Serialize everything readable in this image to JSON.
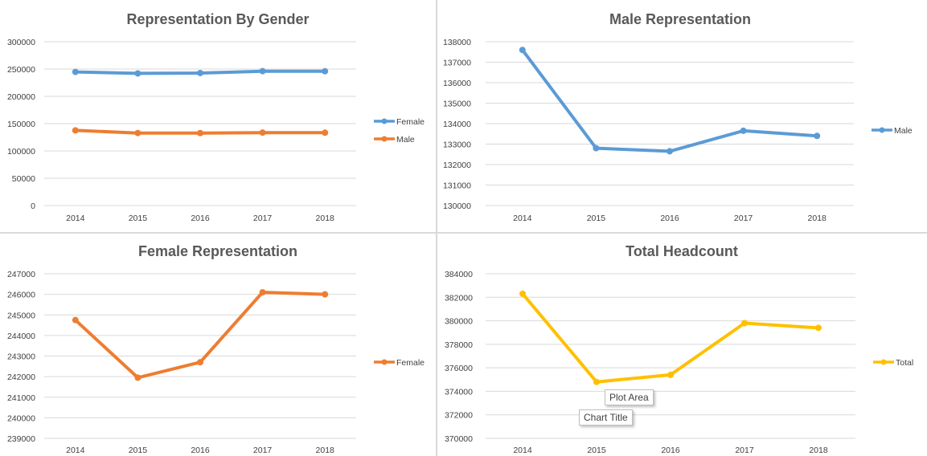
{
  "chart_data": [
    {
      "type": "line",
      "title": "Representation By Gender",
      "categories": [
        "2014",
        "2015",
        "2016",
        "2017",
        "2018"
      ],
      "series": [
        {
          "name": "Female",
          "values": [
            244700,
            242000,
            242700,
            246100,
            246000
          ],
          "color": "#5b9bd5"
        },
        {
          "name": "Male",
          "values": [
            137600,
            132800,
            132700,
            133600,
            133400
          ],
          "color": "#ed7d31"
        }
      ],
      "yticks": [
        "300000",
        "250000",
        "200000",
        "150000",
        "100000",
        "50000",
        "0"
      ],
      "ylim": [
        0,
        300000
      ],
      "legend_position": "right",
      "grid": true
    },
    {
      "type": "line",
      "title": "Male Representation",
      "categories": [
        "2014",
        "2015",
        "2016",
        "2017",
        "2018"
      ],
      "series": [
        {
          "name": "Male",
          "values": [
            137600,
            132800,
            132650,
            133650,
            133400
          ],
          "color": "#5b9bd5"
        }
      ],
      "yticks": [
        "138000",
        "137000",
        "136000",
        "135000",
        "134000",
        "133000",
        "132000",
        "131000",
        "130000"
      ],
      "ylim": [
        130000,
        138000
      ],
      "legend_position": "right",
      "grid": true
    },
    {
      "type": "line",
      "title": "Female Representation",
      "categories": [
        "2014",
        "2015",
        "2016",
        "2017",
        "2018"
      ],
      "series": [
        {
          "name": "Female",
          "values": [
            244750,
            241950,
            242700,
            246100,
            246000
          ],
          "color": "#ed7d31"
        }
      ],
      "yticks": [
        "247000",
        "246000",
        "245000",
        "244000",
        "243000",
        "242000",
        "241000",
        "240000",
        "239000"
      ],
      "ylim": [
        239000,
        247000
      ],
      "legend_position": "right",
      "grid": true
    },
    {
      "type": "line",
      "title": "Total Headcount",
      "categories": [
        "2014",
        "2015",
        "2016",
        "2017",
        "2018"
      ],
      "series": [
        {
          "name": "Total",
          "values": [
            382300,
            374800,
            375400,
            379800,
            379400
          ],
          "color": "#ffc000"
        }
      ],
      "yticks": [
        "384000",
        "382000",
        "380000",
        "378000",
        "376000",
        "374000",
        "372000",
        "370000"
      ],
      "ylim": [
        370000,
        384000
      ],
      "legend_position": "right",
      "grid": true
    }
  ],
  "tooltips": {
    "plot_area": "Plot Area",
    "chart_title": "Chart Title"
  }
}
